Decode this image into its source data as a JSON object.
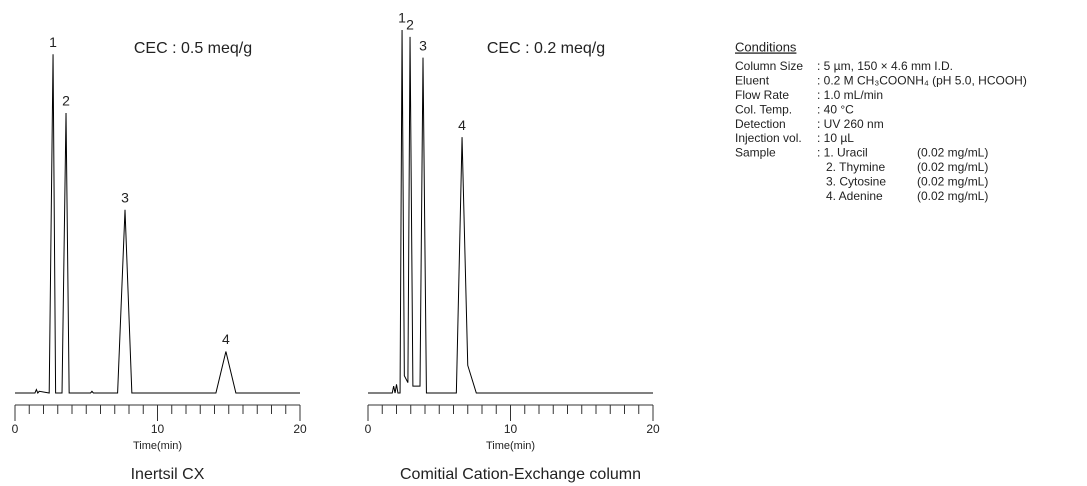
{
  "chart_data": [
    {
      "type": "line",
      "title": "Inertsil CX",
      "annotation": "CEC : 0.5 meq/g",
      "xlabel": "Time(min)",
      "x": [
        0,
        1.4,
        1.5,
        1.6,
        1.7,
        2.4,
        2.67,
        2.85,
        3.3,
        3.58,
        3.8,
        5.3,
        5.4,
        5.5,
        7.2,
        7.72,
        8.2,
        14.1,
        14.8,
        15.5,
        20
      ],
      "values": [
        0,
        0,
        1,
        0,
        0.5,
        0,
        98,
        0,
        0,
        81,
        0,
        0,
        0.5,
        0,
        0,
        53,
        0,
        0,
        12,
        0,
        0
      ],
      "color": "#000000",
      "xlim": [
        0,
        20
      ],
      "xticks": [
        0,
        10,
        20
      ],
      "minor_step": 1,
      "ylim": [
        0,
        105
      ],
      "peaks": [
        {
          "label": "1",
          "x": 2.67,
          "y": 98
        },
        {
          "label": "2",
          "x": 3.58,
          "y": 81
        },
        {
          "label": "3",
          "x": 7.72,
          "y": 53
        },
        {
          "label": "4",
          "x": 14.8,
          "y": 12
        }
      ]
    },
    {
      "type": "line",
      "title": "Comitial Cation-Exchange column",
      "annotation": "CEC : 0.2 meq/g",
      "xlabel": "Time(min)",
      "x": [
        0,
        1.7,
        1.8,
        1.9,
        2.0,
        2.1,
        2.25,
        2.39,
        2.55,
        2.8,
        2.95,
        3.15,
        3.65,
        3.86,
        4.1,
        6.2,
        6.6,
        7.0,
        7.6,
        20
      ],
      "values": [
        0,
        0,
        2,
        0,
        2.5,
        0,
        0,
        105,
        5,
        3,
        103,
        2,
        2,
        97,
        0,
        0,
        74,
        8,
        0,
        0
      ],
      "color": "#000000",
      "xlim": [
        0,
        20
      ],
      "xticks": [
        0,
        10,
        20
      ],
      "minor_step": 1,
      "ylim": [
        0,
        105
      ],
      "peaks": [
        {
          "label": "1",
          "x": 2.39,
          "y": 105
        },
        {
          "label": "2",
          "x": 2.95,
          "y": 103
        },
        {
          "label": "3",
          "x": 3.86,
          "y": 97
        },
        {
          "label": "4",
          "x": 6.6,
          "y": 74
        }
      ]
    }
  ],
  "conditions": {
    "heading": "Conditions",
    "rows": [
      {
        "label": "Column Size",
        "value": ": 5 µm, 150 × 4.6 mm I.D."
      },
      {
        "label": "Eluent",
        "value": ": 0.2 M CH₃COONH₄ (pH 5.0, HCOOH)"
      },
      {
        "label": "Flow Rate",
        "value": ": 1.0 mL/min"
      },
      {
        "label": "Col. Temp.",
        "value": ": 40 °C"
      },
      {
        "label": "Detection",
        "value": ": UV 260 nm"
      },
      {
        "label": "Injection vol.",
        "value": ": 10 µL"
      }
    ],
    "sample": {
      "label": "Sample",
      "items": [
        {
          "name": ": 1. Uracil",
          "conc": "(0.02 mg/mL)"
        },
        {
          "name": "2. Thymine",
          "conc": "(0.02 mg/mL)"
        },
        {
          "name": "3. Cytosine",
          "conc": "(0.02 mg/mL)"
        },
        {
          "name": "4. Adenine",
          "conc": "(0.02 mg/mL)"
        }
      ]
    }
  }
}
